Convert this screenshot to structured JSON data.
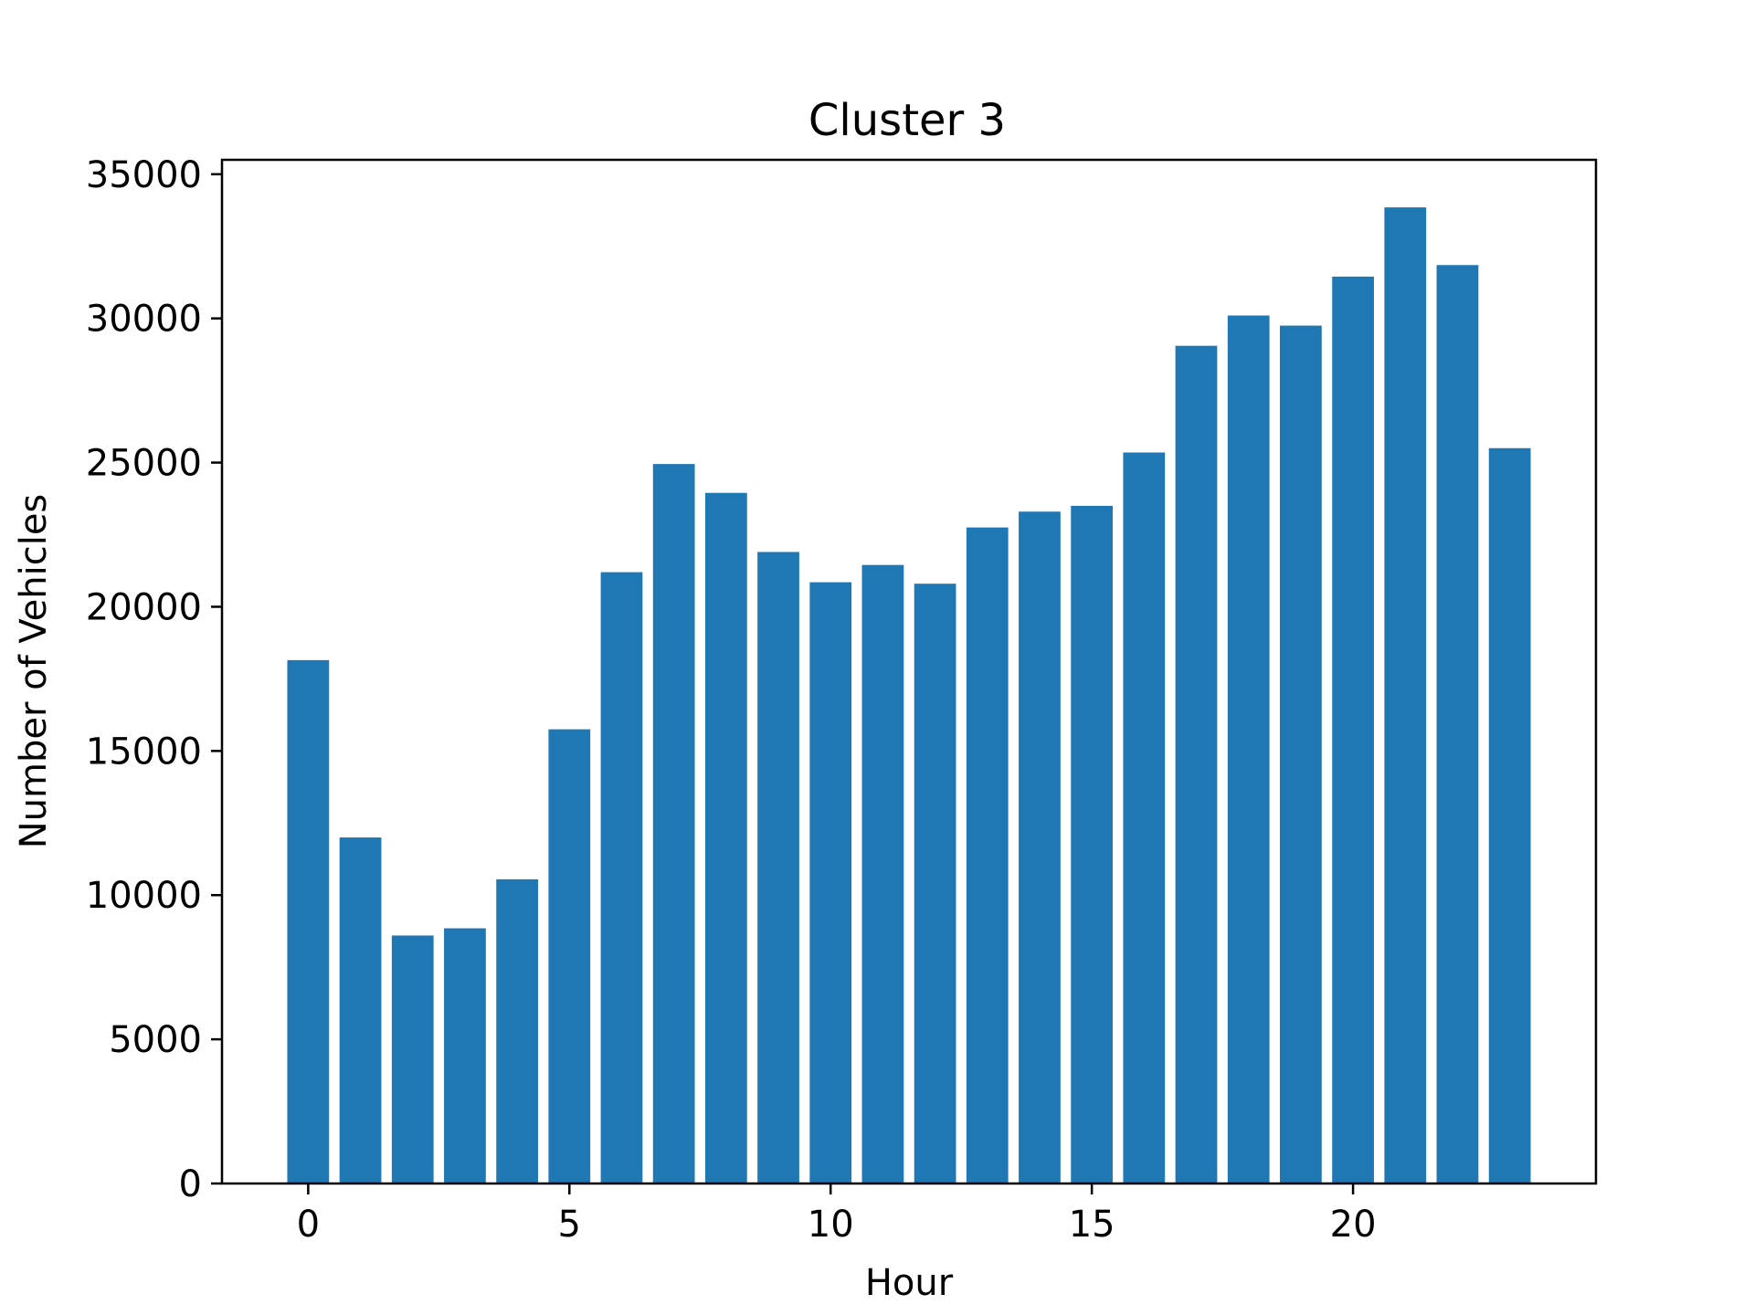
{
  "chart_data": {
    "type": "bar",
    "title": "Cluster 3",
    "xlabel": "Hour",
    "ylabel": "Number of Vehicles",
    "x": [
      0,
      1,
      2,
      3,
      4,
      5,
      6,
      7,
      8,
      9,
      10,
      11,
      12,
      13,
      14,
      15,
      16,
      17,
      18,
      19,
      20,
      21,
      22,
      23
    ],
    "values": [
      18150,
      12000,
      8600,
      8850,
      10550,
      15750,
      21200,
      24950,
      23950,
      21900,
      20850,
      21450,
      20800,
      22750,
      23300,
      23500,
      25350,
      29050,
      30100,
      29750,
      31450,
      33850,
      31850,
      25500
    ],
    "xlim": [
      -1.65,
      24.65
    ],
    "ylim": [
      0,
      35500
    ],
    "xticks": [
      0,
      5,
      10,
      15,
      20
    ],
    "yticks": [
      0,
      5000,
      10000,
      15000,
      20000,
      25000,
      30000,
      35000
    ],
    "bar_color": "#1f77b4",
    "grid": false,
    "legend": "none"
  }
}
